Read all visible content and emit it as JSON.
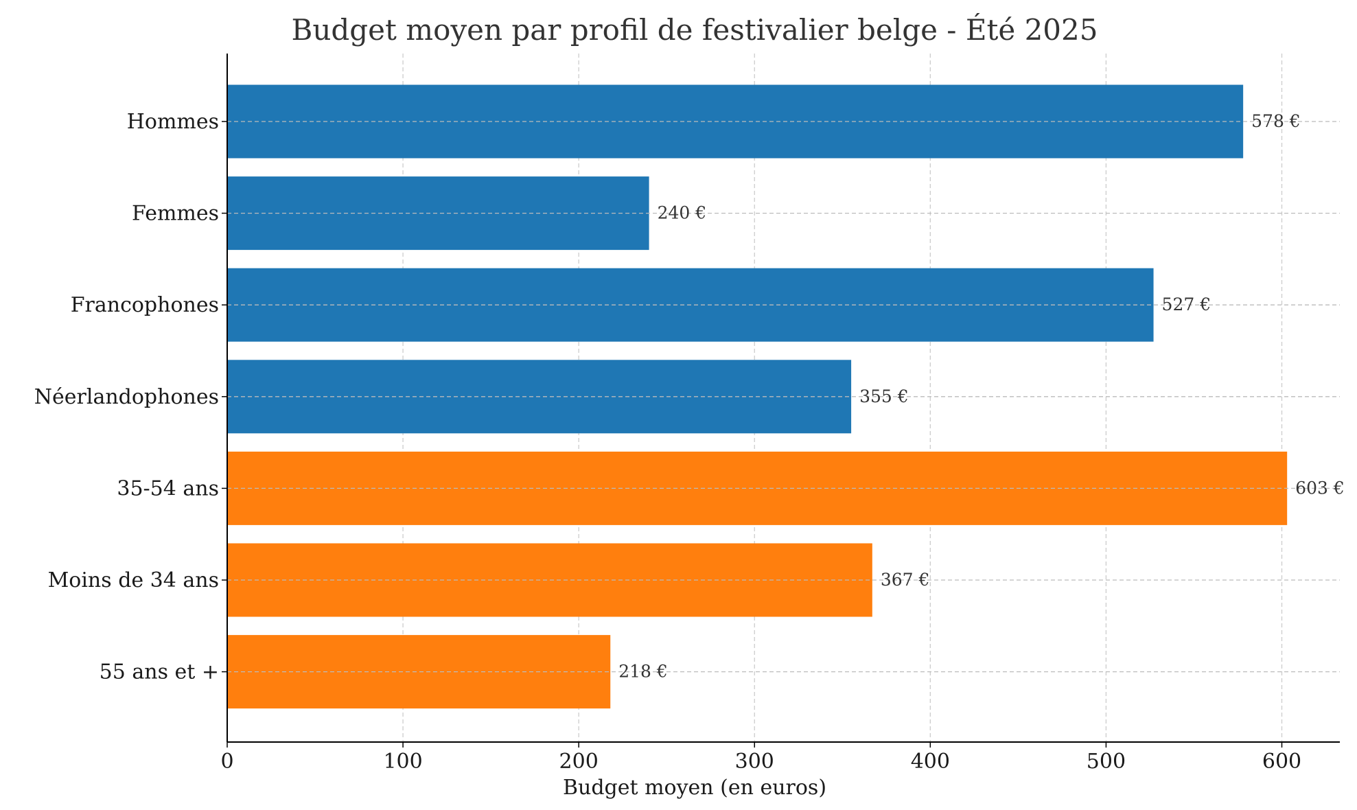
{
  "chart_data": {
    "type": "bar",
    "orientation": "horizontal",
    "title": "Budget moyen par profil de festivalier belge - Été 2025",
    "xlabel": "Budget moyen (en euros)",
    "ylabel": "",
    "xlim": [
      0,
      633
    ],
    "xticks": [
      0,
      100,
      200,
      300,
      400,
      500,
      600
    ],
    "grid": true,
    "value_suffix": " €",
    "categories": [
      "Hommes",
      "Femmes",
      "Francophones",
      "Néerlandophones",
      "35-54 ans",
      "Moins de 34 ans",
      "55 ans et +"
    ],
    "values": [
      578,
      240,
      527,
      355,
      603,
      367,
      218
    ],
    "colors": [
      "#1f77b4",
      "#1f77b4",
      "#1f77b4",
      "#1f77b4",
      "#ff7f0e",
      "#ff7f0e",
      "#ff7f0e"
    ]
  }
}
